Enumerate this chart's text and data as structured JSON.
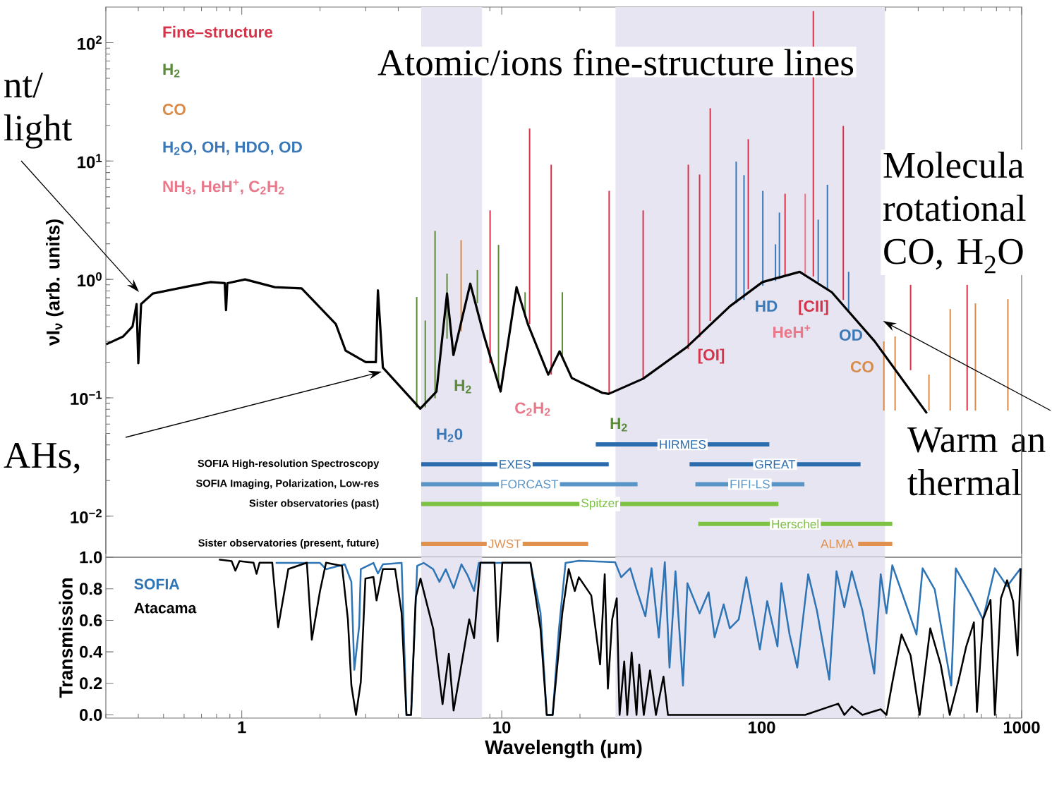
{
  "chart_data": [
    {
      "type": "line",
      "ylabel": "νI$_{ν}$ (arb. units)",
      "xlim": [
        0.3,
        1000
      ],
      "ylim": [
        0.0045,
        200
      ],
      "log": "xy",
      "tick_labels": "y",
      "xticks": [
        1,
        10,
        100,
        1000
      ],
      "yticks": [
        {
          "value": 0.01,
          "label": "10$^{−2}$"
        },
        {
          "value": 0.1,
          "label": "10$^{−1}$"
        },
        {
          "value": 1,
          "label": "10$^{0}$"
        },
        {
          "value": 10,
          "label": "10$^{1}$"
        },
        {
          "value": 100,
          "label": "10$^{2}$"
        }
      ],
      "legend": "top left",
      "bands": [
        {
          "axis": "x",
          "from": 4.9,
          "to": 8.4,
          "color": "#e6e5f1"
        },
        {
          "axis": "x",
          "from": 27.4,
          "to": 298,
          "color": "#e6e5f1"
        }
      ],
      "series": [
        {
          "name": "Fine–structure",
          "color": "#d6334a",
          "x": [
            9.02,
            9.02
          ],
          "values": [
            0.196,
            3.83
          ]
        },
        {
          "color": "#d6334a",
          "x": [
            12.8,
            12.8
          ],
          "values": [
            0.42,
            18.8
          ]
        },
        {
          "color": "#d6334a",
          "x": [
            15.5,
            15.5
          ],
          "values": [
            0.157,
            9.3
          ]
        },
        {
          "color": "#d6334a",
          "x": [
            25.9,
            25.9
          ],
          "values": [
            0.11,
            5.6
          ]
        },
        {
          "color": "#d6334a",
          "x": [
            35.0,
            35.0
          ],
          "values": [
            0.145,
            3.83
          ]
        },
        {
          "color": "#d6334a",
          "x": [
            52.2,
            52.2
          ],
          "values": [
            0.257,
            9.3
          ]
        },
        {
          "color": "#d6334a",
          "x": [
            57.7,
            57.7
          ],
          "values": [
            0.325,
            7.7
          ]
        },
        {
          "color": "#d6334a",
          "x": [
            63.4,
            63.4
          ],
          "values": [
            0.446,
            27.9
          ]
        },
        {
          "color": "#d6334a",
          "x": [
            88.8,
            88.8
          ],
          "values": [
            0.826,
            15.3
          ]
        },
        {
          "color": "#d6334a",
          "x": [
            123,
            123
          ],
          "values": [
            1.06,
            5.3
          ]
        },
        {
          "color": "#d6334a",
          "x": [
            158,
            158
          ],
          "values": [
            1.06,
            185
          ]
        },
        {
          "color": "#d6334a",
          "x": [
            206,
            206
          ],
          "values": [
            0.672,
            19.8
          ]
        },
        {
          "color": "#d6334a",
          "x": [
            374,
            374
          ],
          "values": [
            0.171,
            0.9
          ]
        },
        {
          "color": "#d6334a",
          "x": [
            617,
            617
          ],
          "values": [
            0.078,
            0.9
          ]
        },
        {
          "name": "H$_{2}$",
          "color": "#5a8a3a",
          "x": [
            4.71,
            4.71
          ],
          "values": [
            0.083,
            0.71
          ]
        },
        {
          "color": "#5a8a3a",
          "x": [
            5.08,
            5.08
          ],
          "values": [
            0.083,
            0.45
          ]
        },
        {
          "color": "#5a8a3a",
          "x": [
            5.54,
            5.54
          ],
          "values": [
            0.099,
            2.57
          ]
        },
        {
          "color": "#5a8a3a",
          "x": [
            6.16,
            6.16
          ],
          "values": [
            0.316,
            1.12
          ]
        },
        {
          "color": "#5a8a3a",
          "x": [
            8.06,
            8.06
          ],
          "values": [
            0.63,
            1.2
          ]
        },
        {
          "color": "#5a8a3a",
          "x": [
            9.72,
            9.72
          ],
          "values": [
            0.121,
            1.96
          ]
        },
        {
          "color": "#5a8a3a",
          "x": [
            12.3,
            12.3
          ],
          "values": [
            0.477,
            0.78
          ]
        },
        {
          "color": "#5a8a3a",
          "x": [
            17.1,
            17.1
          ],
          "values": [
            0.224,
            0.78
          ]
        },
        {
          "name": "CO",
          "color": "#d98c4a",
          "x": [
            6.98,
            6.98
          ],
          "values": [
            0.363,
            2.15
          ]
        },
        {
          "color": "#d98c4a",
          "x": [
            295,
            295
          ],
          "values": [
            0.078,
            0.3
          ]
        },
        {
          "color": "#d98c4a",
          "x": [
            326,
            326
          ],
          "values": [
            0.078,
            0.33
          ]
        },
        {
          "color": "#d98c4a",
          "x": [
            440,
            440
          ],
          "values": [
            0.078,
            0.157
          ]
        },
        {
          "color": "#d98c4a",
          "x": [
            531,
            531
          ],
          "values": [
            0.078,
            0.562
          ]
        },
        {
          "color": "#d98c4a",
          "x": [
            664,
            664
          ],
          "values": [
            0.078,
            0.628
          ]
        },
        {
          "color": "#d98c4a",
          "x": [
            885,
            885
          ],
          "values": [
            0.078,
            0.681
          ]
        },
        {
          "name": "H$_{2}$O, OH, HDO, OD",
          "color": "#3a78b8",
          "x": [
            79.8,
            79.8
          ],
          "values": [
            0.628,
            9.9
          ]
        },
        {
          "color": "#3a78b8",
          "x": [
            85.5,
            85.5
          ],
          "values": [
            0.672,
            7.6
          ]
        },
        {
          "color": "#3a78b8",
          "x": [
            101,
            101
          ],
          "values": [
            0.884,
            5.6
          ]
        },
        {
          "color": "#3a78b8",
          "x": [
            113,
            113
          ],
          "values": [
            0.97,
            1.98
          ]
        },
        {
          "color": "#3a78b8",
          "x": [
            117,
            117
          ],
          "values": [
            1.01,
            3.67
          ]
        },
        {
          "color": "#3a78b8",
          "x": [
            165,
            165
          ],
          "values": [
            0.95,
            3.2
          ]
        },
        {
          "color": "#3a78b8",
          "x": [
            179,
            179
          ],
          "values": [
            0.826,
            6.3
          ]
        },
        {
          "color": "#3a78b8",
          "x": [
            216,
            216
          ],
          "values": [
            0.548,
            1.16
          ]
        },
        {
          "name": "NH$_{3}$, HeH$^{+}$, C$_{2}$H$_{2}$",
          "color": "#e8788a",
          "x": [
            147,
            147
          ],
          "values": [
            1.12,
            5.3
          ]
        },
        {
          "color": "#000000",
          "x": [
            0.301,
            0.35,
            0.38,
            0.394,
            0.4,
            0.41,
            0.455,
            0.6,
            0.76,
            0.86,
            0.87,
            0.88,
            1.03,
            1.34,
            1.7,
            2.3,
            2.51,
            3.0,
            3.28,
            3.34,
            3.49,
            4.86,
            5.61,
            6.16,
            6.52,
            7.57,
            8.53,
            9.9,
            11.4,
            12.6,
            15.1,
            16.7,
            18.6,
            24.4,
            25.8,
            35.0,
            51.5,
            75.5,
            100.7,
            140,
            186,
            272,
            432
          ],
          "values": [
            0.283,
            0.33,
            0.4,
            0.619,
            0.196,
            0.62,
            0.76,
            0.86,
            0.95,
            0.93,
            0.55,
            0.93,
            1.0,
            0.86,
            0.84,
            0.42,
            0.25,
            0.2,
            0.2,
            0.81,
            0.18,
            0.081,
            0.113,
            0.76,
            0.23,
            0.92,
            0.34,
            0.113,
            0.86,
            0.42,
            0.157,
            0.247,
            0.147,
            0.11,
            0.108,
            0.145,
            0.268,
            0.594,
            0.95,
            1.16,
            0.78,
            0.3,
            0.074
          ]
        }
      ],
      "annotations": [
        "Atomic/ions fine-structure lines",
        "Molecula rotational CO, H$_{2}$O",
        {
          "text": "Warm an thermal",
          "x": 293,
          "y": 0.446
        },
        "nt/ light",
        "AHs,",
        "H$_{2}$",
        "C$_{2}$H$_{2}$",
        "H$_{2}$",
        "H$_{2}$0",
        "[OI]",
        "HD",
        "[CII]",
        "HeH$^{+}$",
        "OD",
        "CO"
      ]
    },
    {
      "type": "bar",
      "orientation": "horizontal",
      "xlim": [
        0.3,
        1000
      ],
      "log": "x",
      "tick_labels": "y",
      "categories": [
        null,
        "SOFIA High-resolution Spectroscopy",
        "SOFIA Imaging, Polarization, Low-res",
        "Sister observatories (past)",
        null,
        "Sister observatories (present, future)"
      ],
      "series": [
        {
          "colors": [
            "#2a6cad",
            "#2a6cad",
            "#5a95c8",
            "#7dc242",
            "#7dc242",
            "#e0904f"
          ],
          "base": [
            23,
            4.9,
            4.9,
            4.9,
            57,
            4.9
          ],
          "values": [
            84,
            20.9,
            28.4,
            111.1,
            261,
            16.6
          ],
          "value_labels": [
            "HIRMES",
            "EXES",
            "FORCAST",
            "Spitzer",
            "Herschel",
            "JWST"
          ]
        },
        {
          "colors": [
            "#2a6cad",
            "#2a6cad",
            "#5a95c8",
            "#7dc242",
            "#7dc242",
            "#e0904f"
          ],
          "base": [
            null,
            52.8,
            55.6,
            null,
            null,
            235
          ],
          "values": [
            null,
            187.2,
            90.4,
            null,
            null,
            83
          ],
          "value_labels": [
            null,
            "GREAT",
            "FIFI-LS",
            null,
            null,
            "ALMA"
          ]
        }
      ]
    },
    {
      "type": "line",
      "xlabel": "Wavelength (μm)",
      "ylabel": "Transmission",
      "xlim": [
        0.3,
        1000
      ],
      "ylim": [
        -0.02,
        1.0
      ],
      "log": "x",
      "legend": "top left",
      "xticks": [
        1,
        10,
        100,
        1000
      ],
      "yticks": [
        {
          "value": 0,
          "label": "0.0"
        },
        0.2,
        0.4,
        0.6,
        0.8,
        {
          "value": 1.0,
          "label": "1.0"
        }
      ],
      "bands": [
        {
          "axis": "x",
          "from": 4.9,
          "to": 8.4,
          "color": "#e6e5f1"
        },
        {
          "axis": "x",
          "from": 27.4,
          "to": 298,
          "color": "#e6e5f1"
        }
      ],
      "series": [
        {
          "name": "SOFIA",
          "color": "#2f75b5",
          "x": [
            1.35,
            2.0,
            2.11,
            2.49,
            2.64,
            2.71,
            2.83,
            2.87,
            3.21,
            3.34,
            3.49,
            4.12,
            4.3,
            4.48,
            4.73,
            5.01,
            5.45,
            5.76,
            6.09,
            6.53,
            7.0,
            7.4,
            7.83,
            8.16,
            10.05,
            12.9,
            14.1,
            14.9,
            15.7,
            16.6,
            17.6,
            19.8,
            27.3,
            28.8,
            31.2,
            33.0,
            35.7,
            37.7,
            40.2,
            42.4,
            44.2,
            46.6,
            49.8,
            51.8,
            57.7,
            62.5,
            65.9,
            71.4,
            75.4,
            81.6,
            87.3,
            98.4,
            105,
            115,
            119,
            128,
            137,
            151,
            163,
            182,
            194,
            208,
            222,
            244,
            271,
            287,
            302,
            318,
            394,
            416,
            463,
            536,
            558,
            638,
            710,
            789,
            879,
            991
          ],
          "values": [
            0.964,
            0.964,
            0.924,
            0.955,
            0.844,
            0.286,
            0.567,
            0.924,
            0.964,
            0.897,
            0.955,
            0.964,
            0,
            0,
            0.946,
            0.964,
            0.924,
            0.844,
            0.924,
            0.804,
            0.955,
            0.884,
            0.786,
            0.964,
            0.964,
            0.964,
            0.647,
            0,
            0,
            0.545,
            0.964,
            0.978,
            0.969,
            0.873,
            0.93,
            0.796,
            0.625,
            0.93,
            0.491,
            0.969,
            0.3,
            0.911,
            0.186,
            0.835,
            0.644,
            0.778,
            0.492,
            0.701,
            0.549,
            0.606,
            0.873,
            0.415,
            0.721,
            0.434,
            0.835,
            0.51,
            0.3,
            0.892,
            0.663,
            0.224,
            0.911,
            0.682,
            0.911,
            0.663,
            0.262,
            0.892,
            0.644,
            0.949,
            0.51,
            0.93,
            0.796,
            0.186,
            0.93,
            0.759,
            0.606,
            0.93,
            0.816,
            0.93
          ]
        },
        {
          "name": "Atacama",
          "color": "#000000",
          "x": [
            0.817,
            0.914,
            0.945,
            0.98,
            1.11,
            1.14,
            1.17,
            1.31,
            1.38,
            1.51,
            1.78,
            1.86,
            2.0,
            2.11,
            2.43,
            2.56,
            2.64,
            2.75,
            2.87,
            2.99,
            3.21,
            3.3,
            3.49,
            3.89,
            4.12,
            4.3,
            4.48,
            4.67,
            4.87,
            5.45,
            5.92,
            6.26,
            6.53,
            7.5,
            7.83,
            8.28,
            9.38,
            9.64,
            10.05,
            12.9,
            14.1,
            14.9,
            15.7,
            17.1,
            18.1,
            19.1,
            19.8,
            22.1,
            23.9,
            24.9,
            25.6,
            26.6,
            27.7,
            28.4,
            29.6,
            30.4,
            31.6,
            33,
            33.8,
            35.2,
            37.2,
            39.2,
            41.9,
            43.6,
            147,
            197,
            208,
            222,
            244,
            287,
            302,
            318,
            345,
            374,
            405,
            445,
            488,
            529,
            573,
            612,
            655,
            673,
            710,
            759,
            789,
            832,
            879,
            927,
            964,
            991
          ],
          "values": [
            0.985,
            0.975,
            0.915,
            0.975,
            0.965,
            0.895,
            0.965,
            0.965,
            0.556,
            0.925,
            0.965,
            0.477,
            0.786,
            0.965,
            0.945,
            0.606,
            0.188,
            0,
            0.208,
            0.865,
            0.875,
            0.726,
            0.925,
            0.925,
            0.646,
            0,
            0,
            0.746,
            0.865,
            0.546,
            0.068,
            0.387,
            0.028,
            0.606,
            0.487,
            0.965,
            0.965,
            0.467,
            0.965,
            0.965,
            0.546,
            0,
            0,
            0.646,
            0.925,
            0.786,
            0.873,
            0.758,
            0.32,
            0.892,
            0.167,
            0.606,
            0.739,
            0,
            0.339,
            0,
            0.396,
            0,
            0.32,
            0,
            0.282,
            0,
            0.243,
            0,
            0,
            0.071,
            0,
            0.054,
            0,
            0.036,
            0,
            0.205,
            0.51,
            0.377,
            0,
            0.549,
            0.32,
            0,
            0.224,
            0.434,
            0.587,
            0.018,
            0.606,
            0.73,
            0,
            0.739,
            0.854,
            0.721,
            0.377,
            0.93
          ]
        }
      ]
    }
  ]
}
